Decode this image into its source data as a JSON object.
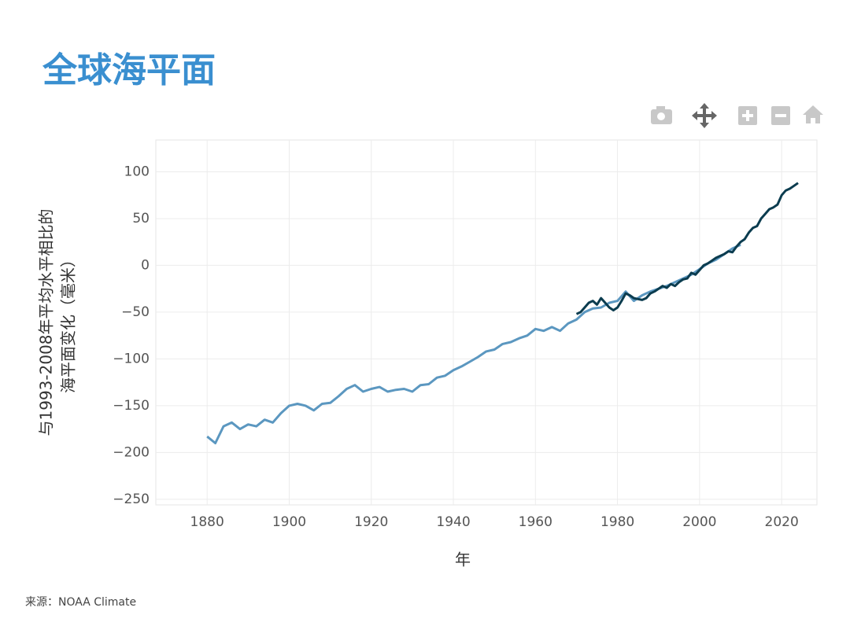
{
  "chart_data": {
    "type": "line",
    "title": "全球海平面",
    "xlabel": "年",
    "ylabel": [
      "与1993-2008年平均水平相比的",
      "海平面变化（毫米）"
    ],
    "source": "来源：NOAA Climate",
    "xlim": [
      1867.5,
      2028.6
    ],
    "xticks": [
      1880,
      1900,
      1920,
      1940,
      1960,
      1980,
      2000,
      2020
    ],
    "ylim": [
      -256,
      134
    ],
    "yticks": [
      100,
      50,
      0,
      {
        "value": -50,
        "label": "−50"
      },
      {
        "value": -100,
        "label": "−100"
      },
      {
        "value": -150,
        "label": "−150"
      },
      {
        "value": -200,
        "label": "−200"
      },
      {
        "value": -250,
        "label": "−250"
      }
    ],
    "grid": true,
    "series": [
      {
        "color": "#5b97c0",
        "x": [
          1880,
          1882,
          1884,
          1886,
          1888,
          1890,
          1892,
          1894,
          1896,
          1898,
          1900,
          1902,
          1904,
          1906,
          1908,
          1910,
          1912,
          1914,
          1916,
          1918,
          1920,
          1922,
          1924,
          1926,
          1928,
          1930,
          1932,
          1934,
          1936,
          1938,
          1940,
          1942,
          1944,
          1946,
          1948,
          1950,
          1952,
          1954,
          1956,
          1958,
          1960,
          1962,
          1964,
          1966,
          1968,
          1970,
          1972,
          1974,
          1976,
          1978,
          1980,
          1982,
          1984,
          1986,
          1988,
          1990,
          1992,
          1994,
          1996,
          1998,
          2000,
          2002,
          2004,
          2006,
          2008,
          2010
        ],
        "values": [
          -183,
          -190,
          -172,
          -168,
          -175,
          -170,
          -172,
          -165,
          -168,
          -158,
          -150,
          -148,
          -150,
          -155,
          -148,
          -147,
          -140,
          -132,
          -128,
          -135,
          -132,
          -130,
          -135,
          -133,
          -132,
          -135,
          -128,
          -127,
          -120,
          -118,
          -112,
          -108,
          -103,
          -98,
          -92,
          -90,
          -84,
          -82,
          -78,
          -75,
          -68,
          -70,
          -66,
          -70,
          -62,
          -58,
          -50,
          -46,
          -45,
          -40,
          -38,
          -28,
          -38,
          -32,
          -28,
          -25,
          -22,
          -18,
          -14,
          -10,
          -4,
          2,
          6,
          12,
          18,
          22
        ]
      },
      {
        "color": "#0b3c4f",
        "x": [
          1970,
          1971,
          1972,
          1973,
          1974,
          1975,
          1976,
          1977,
          1978,
          1979,
          1980,
          1981,
          1982,
          1983,
          1984,
          1985,
          1986,
          1987,
          1988,
          1989,
          1990,
          1991,
          1992,
          1993,
          1994,
          1995,
          1996,
          1997,
          1998,
          1999,
          2000,
          2001,
          2002,
          2003,
          2004,
          2005,
          2006,
          2007,
          2008,
          2009,
          2010,
          2011,
          2012,
          2013,
          2014,
          2015,
          2016,
          2017,
          2018,
          2019,
          2020,
          2021,
          2022,
          2023,
          2024
        ],
        "values": [
          -52,
          -50,
          -45,
          -40,
          -38,
          -42,
          -35,
          -40,
          -45,
          -48,
          -45,
          -38,
          -30,
          -32,
          -35,
          -36,
          -37,
          -35,
          -30,
          -28,
          -25,
          -22,
          -24,
          -20,
          -22,
          -18,
          -15,
          -14,
          -8,
          -10,
          -5,
          0,
          2,
          5,
          8,
          10,
          12,
          15,
          14,
          20,
          25,
          28,
          35,
          40,
          42,
          50,
          55,
          60,
          62,
          65,
          75,
          80,
          82,
          85,
          88
        ]
      }
    ]
  }
}
